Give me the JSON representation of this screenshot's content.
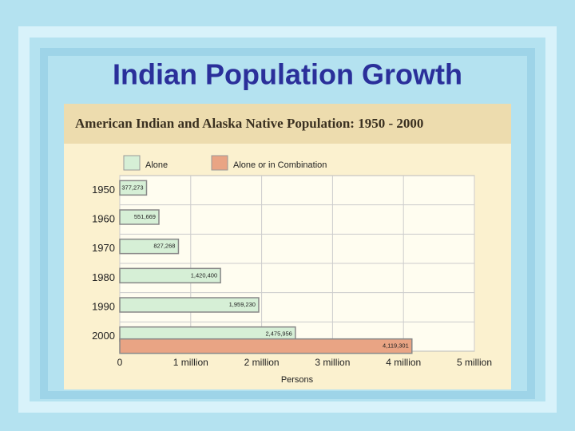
{
  "slide_title": "Indian Population Growth",
  "chart_data": {
    "type": "bar",
    "orientation": "horizontal",
    "title": "American Indian and Alaska Native Population: 1950 - 2000",
    "categories": [
      "1950",
      "1960",
      "1970",
      "1980",
      "1990",
      "2000"
    ],
    "series": [
      {
        "name": "Alone",
        "color": "#d6efd6",
        "values": [
          377273,
          551669,
          827268,
          1420400,
          1959230,
          2475956
        ],
        "value_labels": [
          "377,273",
          "551,669",
          "827,268",
          "1,420,400",
          "1,959,230",
          "2,475,956"
        ]
      },
      {
        "name": "Alone or in Combination",
        "color": "#e9a484",
        "values": [
          null,
          null,
          null,
          null,
          null,
          4119301
        ],
        "value_labels": [
          null,
          null,
          null,
          null,
          null,
          "4,119,301"
        ]
      }
    ],
    "xlim": [
      0,
      5000000
    ],
    "xticks": [
      0,
      {
        "value": 1000000,
        "label": "1 million"
      },
      {
        "value": 2000000,
        "label": "2 million"
      },
      {
        "value": 3000000,
        "label": "3 million"
      },
      {
        "value": 4000000,
        "label": "4 million"
      },
      {
        "value": 5000000,
        "label": "5 million"
      }
    ],
    "xlabel": "Persons",
    "grid": true
  }
}
